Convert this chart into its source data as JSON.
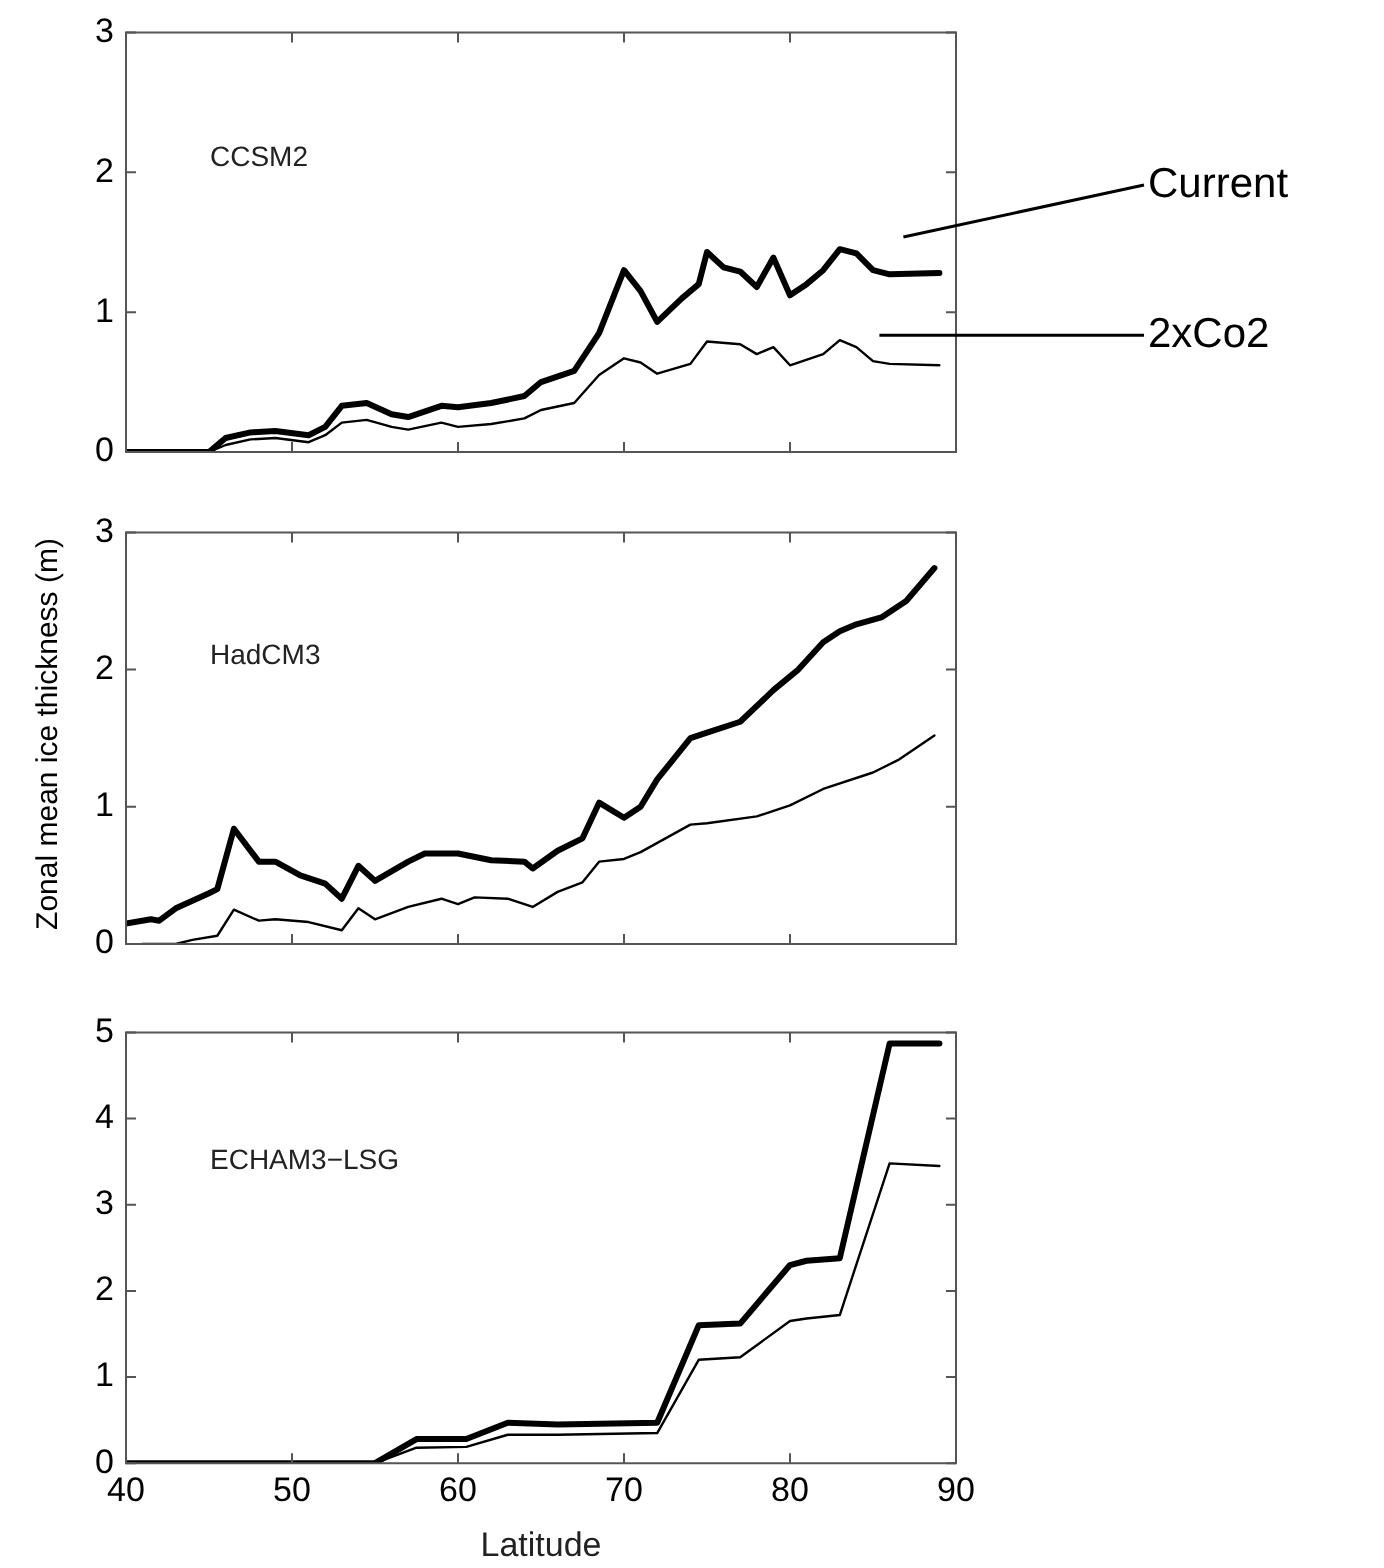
{
  "chart_data": [
    {
      "type": "line",
      "title": "CCSM2",
      "xlim": [
        40,
        90
      ],
      "xticks": [
        40,
        50,
        60,
        70,
        80,
        90
      ],
      "ylim": [
        0,
        3
      ],
      "yticks": [
        0,
        1,
        2,
        3
      ],
      "tick_labels": "y",
      "grid": false,
      "legend": false,
      "marker": "none",
      "line_style": "solid",
      "series": [
        {
          "name": "Current",
          "color": "#000000",
          "x": [
            40,
            45,
            46,
            47.5,
            49,
            51,
            52,
            53,
            54.5,
            56,
            57,
            59,
            60,
            62,
            64,
            65,
            67,
            68.5,
            69.5,
            70,
            71,
            72,
            73.5,
            74.5,
            75,
            76,
            77,
            78,
            79,
            80,
            81,
            82,
            83,
            84,
            85,
            86,
            89
          ],
          "values": [
            0,
            0,
            0.1,
            0.14,
            0.15,
            0.12,
            0.18,
            0.33,
            0.35,
            0.27,
            0.25,
            0.33,
            0.32,
            0.35,
            0.4,
            0.5,
            0.58,
            0.85,
            1.15,
            1.3,
            1.15,
            0.93,
            1.1,
            1.2,
            1.43,
            1.32,
            1.29,
            1.18,
            1.39,
            1.12,
            1.2,
            1.3,
            1.45,
            1.42,
            1.3,
            1.27,
            1.28
          ]
        },
        {
          "name": "2xCo2",
          "color": "#000000",
          "x": [
            40,
            45,
            46,
            47.5,
            49,
            51,
            52,
            53,
            54.5,
            56,
            57,
            59,
            60,
            62,
            64,
            65,
            67,
            68.5,
            70,
            71,
            72,
            74,
            75,
            77,
            78,
            79,
            80,
            82,
            83,
            84,
            85,
            86,
            89
          ],
          "values": [
            0,
            0,
            0.05,
            0.09,
            0.1,
            0.07,
            0.12,
            0.21,
            0.23,
            0.18,
            0.16,
            0.21,
            0.18,
            0.2,
            0.24,
            0.3,
            0.35,
            0.55,
            0.67,
            0.64,
            0.56,
            0.63,
            0.79,
            0.77,
            0.7,
            0.75,
            0.62,
            0.7,
            0.8,
            0.75,
            0.65,
            0.63,
            0.62
          ]
        }
      ]
    },
    {
      "type": "line",
      "title": "HadCM3",
      "ylabel": "Zonal mean ice thickness (m)",
      "xlim": [
        40,
        90
      ],
      "xticks": [
        40,
        50,
        60,
        70,
        80,
        90
      ],
      "ylim": [
        0,
        3
      ],
      "yticks": [
        0,
        1,
        2,
        3
      ],
      "tick_labels": "y",
      "grid": false,
      "legend": false,
      "marker": "none",
      "line_style": "solid",
      "series": [
        {
          "color": "#000000",
          "x": [
            40,
            41.5,
            42,
            43,
            45,
            45.5,
            46.5,
            48,
            49,
            50.5,
            52,
            53,
            54,
            55,
            57,
            58,
            60,
            62,
            64,
            64.5,
            66,
            67.5,
            68.5,
            70,
            71,
            72,
            74,
            75,
            77,
            79,
            80.5,
            82,
            83,
            84,
            85.5,
            87,
            88.7
          ],
          "values": [
            0.15,
            0.18,
            0.17,
            0.26,
            0.37,
            0.4,
            0.84,
            0.6,
            0.6,
            0.5,
            0.44,
            0.33,
            0.57,
            0.46,
            0.6,
            0.66,
            0.66,
            0.61,
            0.6,
            0.55,
            0.68,
            0.77,
            1.03,
            0.92,
            1.0,
            1.2,
            1.5,
            1.54,
            1.62,
            1.85,
            2.0,
            2.2,
            2.28,
            2.33,
            2.38,
            2.5,
            2.74
          ]
        },
        {
          "color": "#000000",
          "x": [
            41,
            43,
            44,
            45.5,
            46.5,
            48,
            49,
            51,
            53,
            54,
            55,
            57,
            59,
            60,
            61,
            63,
            64.5,
            66,
            67.5,
            68.5,
            70,
            71,
            74,
            75,
            78,
            80,
            82,
            85,
            86.5,
            88.7
          ],
          "values": [
            0,
            0,
            0.03,
            0.06,
            0.25,
            0.17,
            0.18,
            0.16,
            0.1,
            0.26,
            0.18,
            0.27,
            0.33,
            0.29,
            0.34,
            0.33,
            0.27,
            0.38,
            0.45,
            0.6,
            0.62,
            0.67,
            0.87,
            0.88,
            0.93,
            1.01,
            1.13,
            1.25,
            1.34,
            1.52
          ]
        }
      ]
    },
    {
      "type": "line",
      "title": "ECHAM3−LSG",
      "xlabel": "Latitude",
      "xlim": [
        40,
        90
      ],
      "xticks": [
        40,
        50,
        60,
        70,
        80,
        90
      ],
      "ylim": [
        0,
        5
      ],
      "yticks": [
        0,
        1,
        2,
        3,
        4,
        5
      ],
      "grid": false,
      "legend": false,
      "marker": "none",
      "line_style": "solid",
      "series": [
        {
          "color": "#000000",
          "x": [
            40,
            55,
            57.5,
            60.5,
            63,
            66,
            72,
            74.5,
            77,
            80,
            81,
            83,
            86,
            89
          ],
          "values": [
            0,
            0,
            0.28,
            0.28,
            0.47,
            0.45,
            0.47,
            1.6,
            1.62,
            2.3,
            2.35,
            2.38,
            4.87,
            4.87
          ]
        },
        {
          "color": "#000000",
          "x": [
            40,
            55,
            57.5,
            60.5,
            63,
            66,
            72,
            74.5,
            77,
            80,
            81,
            83,
            86,
            89
          ],
          "values": [
            0,
            0,
            0.18,
            0.19,
            0.33,
            0.33,
            0.35,
            1.2,
            1.23,
            1.65,
            1.68,
            1.72,
            3.48,
            3.45
          ]
        }
      ]
    }
  ]
}
